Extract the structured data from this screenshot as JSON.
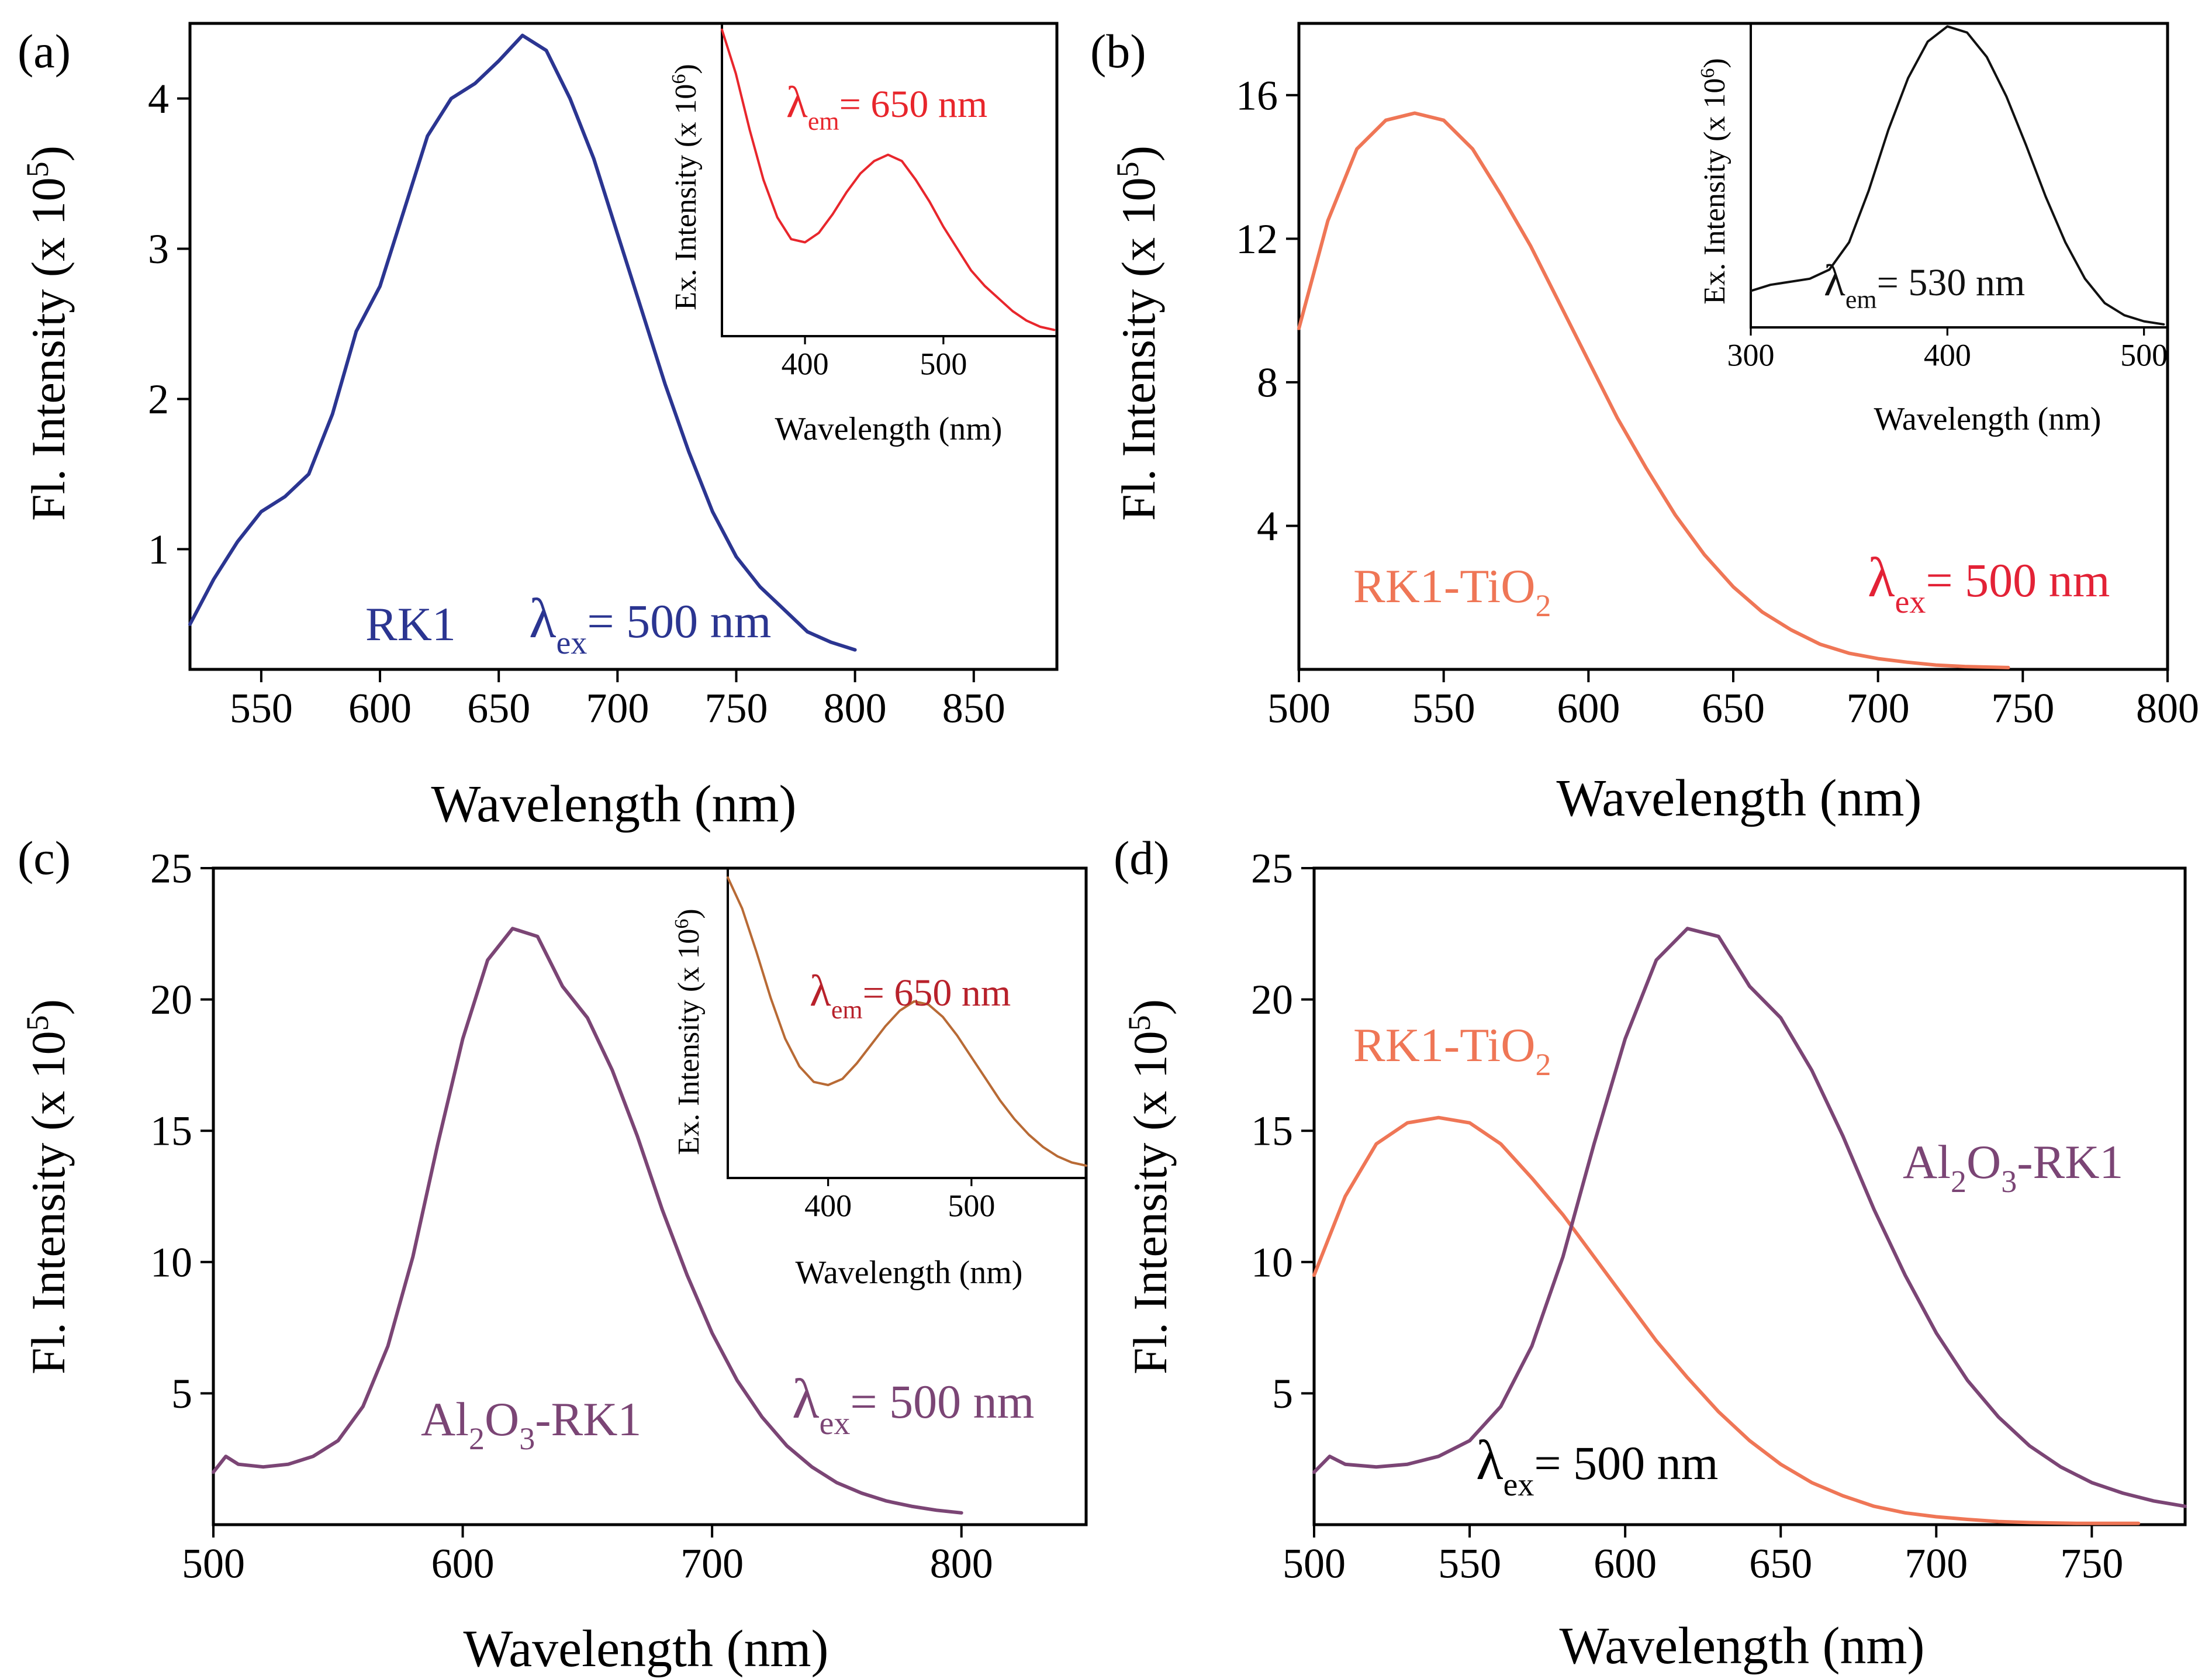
{
  "colors": {
    "rk1": "#2b3591",
    "tio2": "#ef7656",
    "al2o3": "#7b4575",
    "inset_a": "#e8262c",
    "inset_b": "#111111",
    "inset_c": "#b86a35",
    "label_red": "#e32236",
    "label_darkred": "#b8212b",
    "axis": "#000000"
  },
  "chart_data": [
    {
      "panel": "(a)",
      "type": "line",
      "xlabel": "Wavelength (nm)",
      "ylabel": "Fl. Intensity (x 10^5)",
      "xlim": [
        520,
        885
      ],
      "ylim": [
        0.2,
        4.5
      ],
      "xticks": [
        550,
        600,
        650,
        700,
        750,
        800,
        850
      ],
      "yticks": [
        1,
        2,
        3,
        4
      ],
      "series": [
        {
          "name": "RK1",
          "color_key": "rk1",
          "x": [
            520,
            530,
            540,
            550,
            560,
            570,
            580,
            590,
            600,
            610,
            620,
            630,
            640,
            650,
            660,
            670,
            680,
            690,
            700,
            710,
            720,
            730,
            740,
            750,
            760,
            770,
            780,
            790,
            800
          ],
          "y": [
            0.5,
            0.8,
            1.05,
            1.25,
            1.35,
            1.5,
            1.9,
            2.45,
            2.75,
            3.25,
            3.75,
            4.0,
            4.1,
            4.25,
            4.42,
            4.32,
            4.0,
            3.6,
            3.1,
            2.6,
            2.1,
            1.65,
            1.25,
            0.95,
            0.75,
            0.6,
            0.45,
            0.38,
            0.33
          ]
        }
      ],
      "annotations": {
        "sample": "RK1",
        "lambda": "λ",
        "sub": "ex",
        "value": "= 500 nm"
      },
      "inset": {
        "xlabel": "Wavelength (nm)",
        "ylabel": "Ex. Intensity (x 10^6)",
        "xlim": [
          340,
          582
        ],
        "ylim": [
          0,
          1
        ],
        "xticks": [
          400,
          500
        ],
        "series": [
          {
            "name": "Excitation",
            "color_key": "inset_a",
            "x": [
              340,
              350,
              360,
              370,
              380,
              390,
              400,
              410,
              420,
              430,
              440,
              450,
              460,
              470,
              480,
              490,
              500,
              510,
              520,
              530,
              540,
              550,
              560,
              570,
              580
            ],
            "y": [
              0.98,
              0.84,
              0.66,
              0.5,
              0.38,
              0.31,
              0.3,
              0.33,
              0.39,
              0.46,
              0.52,
              0.56,
              0.58,
              0.56,
              0.5,
              0.43,
              0.35,
              0.28,
              0.21,
              0.16,
              0.12,
              0.08,
              0.05,
              0.03,
              0.02
            ]
          }
        ],
        "annotations": {
          "lambda": "λ",
          "sub": "em",
          "value": "= 650 nm"
        }
      }
    },
    {
      "panel": "(b)",
      "type": "line",
      "xlabel": "Wavelength (nm)",
      "ylabel": "Fl. Intensity (x 10^5)",
      "xlim": [
        500,
        800
      ],
      "ylim": [
        0,
        18
      ],
      "xticks": [
        500,
        550,
        600,
        650,
        700,
        750,
        800
      ],
      "yticks": [
        4,
        8,
        12,
        16
      ],
      "series": [
        {
          "name": "RK1-TiO2",
          "color_key": "tio2",
          "x": [
            500,
            510,
            520,
            530,
            540,
            550,
            560,
            570,
            580,
            590,
            600,
            610,
            620,
            630,
            640,
            650,
            660,
            670,
            680,
            690,
            700,
            710,
            720,
            730,
            745
          ],
          "y": [
            9.5,
            12.5,
            14.5,
            15.3,
            15.5,
            15.3,
            14.5,
            13.2,
            11.8,
            10.2,
            8.6,
            7.0,
            5.6,
            4.3,
            3.2,
            2.3,
            1.6,
            1.1,
            0.7,
            0.45,
            0.3,
            0.2,
            0.12,
            0.08,
            0.05
          ]
        }
      ],
      "annotations": {
        "sample": "RK1-TiO",
        "sample_sub": "2",
        "lambda": "λ",
        "sub": "ex",
        "value": "= 500 nm"
      },
      "inset": {
        "xlabel": "Wavelength (nm)",
        "ylabel": "Ex. Intensity (x 10^6)",
        "xlim": [
          300,
          512
        ],
        "ylim": [
          0,
          1
        ],
        "xticks": [
          300,
          400,
          500
        ],
        "series": [
          {
            "name": "Excitation",
            "color_key": "inset_b",
            "x": [
              300,
              310,
              320,
              330,
              340,
              350,
              360,
              370,
              380,
              390,
              400,
              410,
              420,
              430,
              440,
              450,
              460,
              470,
              480,
              490,
              500,
              510
            ],
            "y": [
              0.12,
              0.14,
              0.15,
              0.16,
              0.19,
              0.28,
              0.45,
              0.65,
              0.82,
              0.94,
              0.99,
              0.97,
              0.89,
              0.76,
              0.6,
              0.43,
              0.28,
              0.16,
              0.08,
              0.04,
              0.02,
              0.01
            ]
          }
        ],
        "annotations": {
          "lambda": "λ",
          "sub": "em",
          "value": "= 530 nm"
        }
      }
    },
    {
      "panel": "(c)",
      "type": "line",
      "xlabel": "Wavelength (nm)",
      "ylabel": "Fl. Intensity (x 10^5)",
      "xlim": [
        500,
        850
      ],
      "ylim": [
        0,
        25
      ],
      "xticks": [
        500,
        600,
        700,
        800
      ],
      "yticks": [
        5,
        10,
        15,
        20,
        25
      ],
      "series": [
        {
          "name": "Al2O3-RK1",
          "color_key": "al2o3",
          "x": [
            500,
            505,
            510,
            520,
            530,
            540,
            550,
            560,
            570,
            580,
            590,
            600,
            610,
            620,
            630,
            640,
            650,
            660,
            670,
            680,
            690,
            700,
            710,
            720,
            730,
            740,
            750,
            760,
            770,
            780,
            790,
            800
          ],
          "y": [
            2.0,
            2.6,
            2.3,
            2.2,
            2.3,
            2.6,
            3.2,
            4.5,
            6.8,
            10.2,
            14.5,
            18.5,
            21.5,
            22.7,
            22.4,
            20.5,
            19.3,
            17.3,
            14.8,
            12.0,
            9.5,
            7.3,
            5.5,
            4.1,
            3.0,
            2.2,
            1.6,
            1.2,
            0.9,
            0.7,
            0.55,
            0.45
          ]
        }
      ],
      "annotations": {
        "sample": [
          "Al",
          "2",
          "O",
          "3",
          "-RK1"
        ],
        "lambda": "λ",
        "sub": "ex",
        "value": "= 500 nm"
      },
      "inset": {
        "xlabel": "Wavelength (nm)",
        "ylabel": "Ex. Intensity (x 10^6)",
        "xlim": [
          330,
          580
        ],
        "ylim": [
          0,
          1
        ],
        "xticks": [
          400,
          500
        ],
        "series": [
          {
            "name": "Excitation",
            "color_key": "inset_c",
            "x": [
              330,
              340,
              350,
              360,
              370,
              380,
              390,
              400,
              410,
              420,
              430,
              440,
              450,
              460,
              470,
              480,
              490,
              500,
              510,
              520,
              530,
              540,
              550,
              560,
              570,
              580
            ],
            "y": [
              0.97,
              0.87,
              0.73,
              0.58,
              0.45,
              0.36,
              0.31,
              0.3,
              0.32,
              0.37,
              0.43,
              0.49,
              0.54,
              0.57,
              0.56,
              0.52,
              0.46,
              0.39,
              0.32,
              0.25,
              0.19,
              0.14,
              0.1,
              0.07,
              0.05,
              0.04
            ]
          }
        ],
        "annotations": {
          "lambda": "λ",
          "sub": "em",
          "value": "= 650 nm"
        }
      }
    },
    {
      "panel": "(d)",
      "type": "line",
      "xlabel": "Wavelength (nm)",
      "ylabel": "Fl. Intensity (x 10^5)",
      "xlim": [
        500,
        780
      ],
      "ylim": [
        0,
        25
      ],
      "xticks": [
        500,
        550,
        600,
        650,
        700,
        750
      ],
      "yticks": [
        5,
        10,
        15,
        20,
        25
      ],
      "series": [
        {
          "name": "RK1-TiO2",
          "color_key": "tio2",
          "x": [
            500,
            510,
            520,
            530,
            540,
            550,
            560,
            570,
            580,
            590,
            600,
            610,
            620,
            630,
            640,
            650,
            660,
            670,
            680,
            690,
            700,
            710,
            720,
            730,
            745,
            765
          ],
          "y": [
            9.5,
            12.5,
            14.5,
            15.3,
            15.5,
            15.3,
            14.5,
            13.2,
            11.8,
            10.2,
            8.6,
            7.0,
            5.6,
            4.3,
            3.2,
            2.3,
            1.6,
            1.1,
            0.7,
            0.45,
            0.3,
            0.2,
            0.12,
            0.08,
            0.05,
            0.05
          ]
        },
        {
          "name": "Al2O3-RK1",
          "color_key": "al2o3",
          "x": [
            500,
            505,
            510,
            520,
            530,
            540,
            550,
            560,
            570,
            580,
            590,
            600,
            610,
            620,
            630,
            640,
            650,
            660,
            670,
            680,
            690,
            700,
            710,
            720,
            730,
            740,
            750,
            760,
            770,
            780
          ],
          "y": [
            2.0,
            2.6,
            2.3,
            2.2,
            2.3,
            2.6,
            3.2,
            4.5,
            6.8,
            10.2,
            14.5,
            18.5,
            21.5,
            22.7,
            22.4,
            20.5,
            19.3,
            17.3,
            14.8,
            12.0,
            9.5,
            7.3,
            5.5,
            4.1,
            3.0,
            2.2,
            1.6,
            1.2,
            0.9,
            0.7
          ]
        }
      ],
      "annotations": {
        "sample1": "RK1-TiO",
        "sample1_sub": "2",
        "sample2": [
          "Al",
          "2",
          "O",
          "3",
          "-RK1"
        ],
        "lambda": "λ",
        "sub": "ex",
        "value": "= 500 nm"
      }
    }
  ]
}
